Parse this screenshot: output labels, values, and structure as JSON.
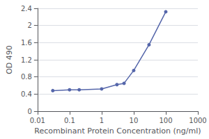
{
  "chart_data": {
    "type": "line",
    "xlabel": "Recombinant Protein Concentration (ng/ml)",
    "ylabel": "OD 490",
    "x": [
      0.03,
      0.1,
      0.2,
      1,
      3,
      5,
      10,
      30,
      100
    ],
    "values": [
      0.48,
      0.5,
      0.5,
      0.52,
      0.62,
      0.65,
      0.95,
      1.55,
      2.32
    ],
    "color": "#5566aa",
    "marker": "circle",
    "log": "x",
    "xlim": [
      0.01,
      1000
    ],
    "xticks": [
      0.01,
      0.1,
      1,
      10,
      100,
      1000
    ],
    "ylim": [
      0,
      2.4
    ],
    "yticks": [
      0,
      0.4,
      0.8,
      1.2,
      1.6,
      2.0,
      2.4
    ],
    "grid": true
  }
}
